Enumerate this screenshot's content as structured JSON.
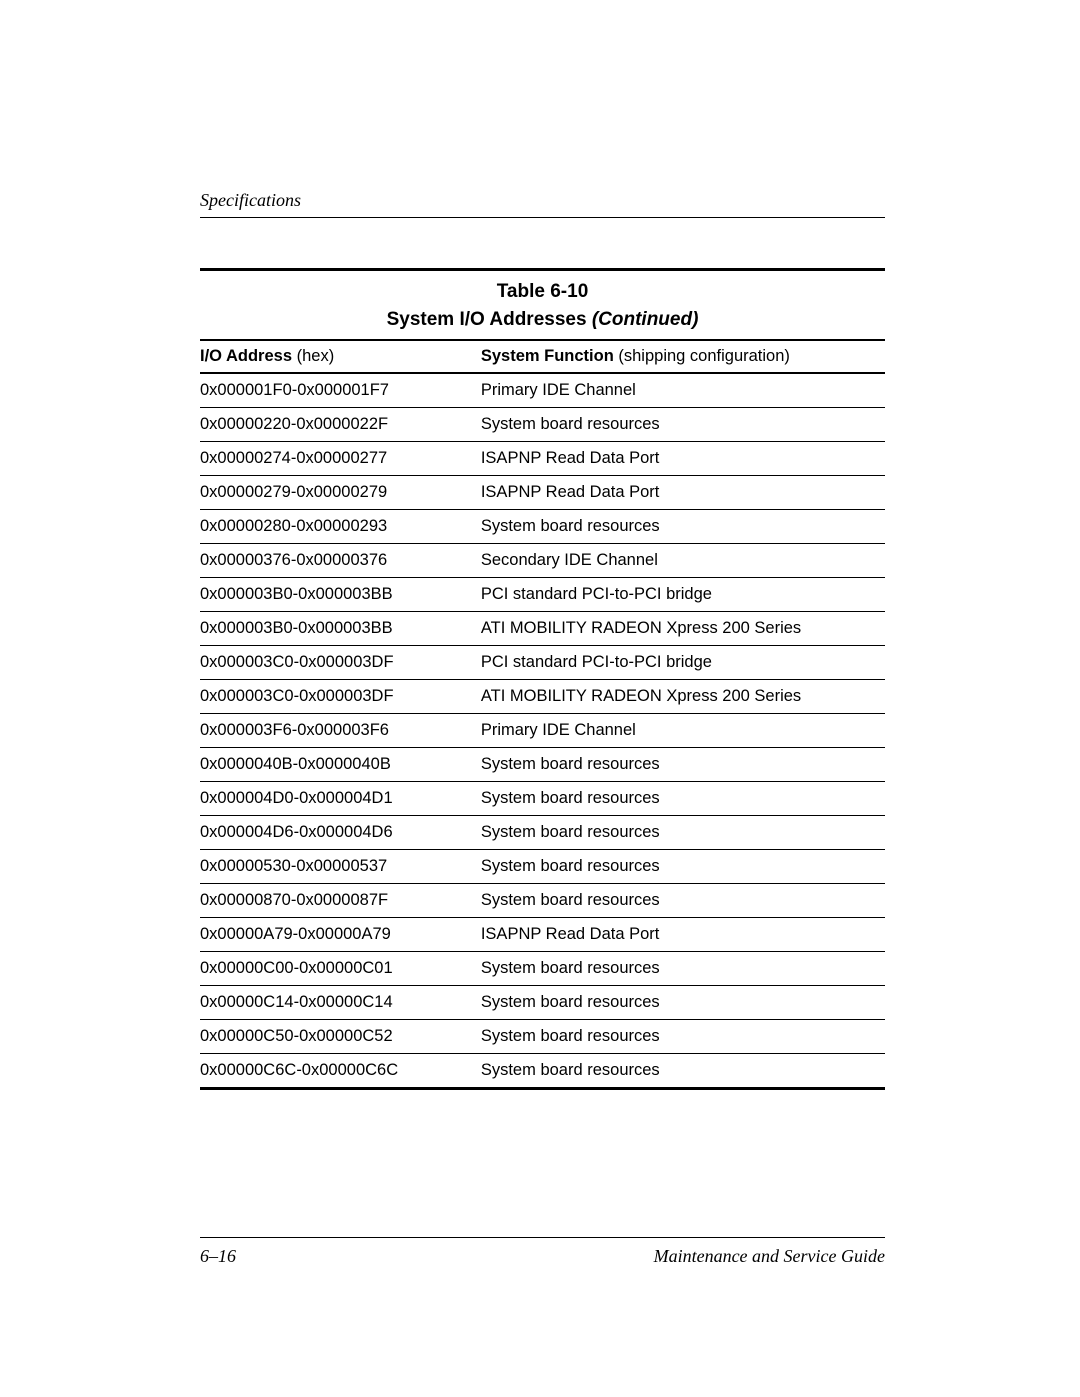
{
  "section_header": "Specifications",
  "table": {
    "caption": "Table 6-10",
    "title_main": "System I/O Addresses ",
    "title_continued": "(Continued)",
    "columns": {
      "addr_bold": "I/O Address ",
      "addr_paren": "(hex)",
      "func_bold": "System Function ",
      "func_paren": "(shipping configuration)"
    },
    "rows": [
      {
        "addr": "0x000001F0-0x000001F7",
        "func": "Primary IDE Channel"
      },
      {
        "addr": "0x00000220-0x0000022F",
        "func": "System board resources"
      },
      {
        "addr": "0x00000274-0x00000277",
        "func": "ISAPNP Read Data Port"
      },
      {
        "addr": "0x00000279-0x00000279",
        "func": "ISAPNP Read Data Port"
      },
      {
        "addr": "0x00000280-0x00000293",
        "func": "System board resources"
      },
      {
        "addr": "0x00000376-0x00000376",
        "func": "Secondary IDE Channel"
      },
      {
        "addr": "0x000003B0-0x000003BB",
        "func": "PCI standard PCI-to-PCI bridge"
      },
      {
        "addr": "0x000003B0-0x000003BB",
        "func": "ATI MOBILITY RADEON Xpress 200 Series"
      },
      {
        "addr": "0x000003C0-0x000003DF",
        "func": "PCI standard PCI-to-PCI bridge"
      },
      {
        "addr": "0x000003C0-0x000003DF",
        "func": "ATI MOBILITY RADEON Xpress 200 Series"
      },
      {
        "addr": "0x000003F6-0x000003F6",
        "func": "Primary IDE Channel"
      },
      {
        "addr": "0x0000040B-0x0000040B",
        "func": "System board resources"
      },
      {
        "addr": "0x000004D0-0x000004D1",
        "func": "System board resources"
      },
      {
        "addr": "0x000004D6-0x000004D6",
        "func": "System board resources"
      },
      {
        "addr": "0x00000530-0x00000537",
        "func": "System board resources"
      },
      {
        "addr": "0x00000870-0x0000087F",
        "func": "System board resources"
      },
      {
        "addr": "0x00000A79-0x00000A79",
        "func": "ISAPNP Read Data Port"
      },
      {
        "addr": "0x00000C00-0x00000C01",
        "func": "System board resources"
      },
      {
        "addr": "0x00000C14-0x00000C14",
        "func": "System board resources"
      },
      {
        "addr": "0x00000C50-0x00000C52",
        "func": "System board resources"
      },
      {
        "addr": "0x00000C6C-0x00000C6C",
        "func": "System board resources"
      }
    ]
  },
  "footer": {
    "page_num": "6–16",
    "guide": "Maintenance and Service Guide"
  }
}
